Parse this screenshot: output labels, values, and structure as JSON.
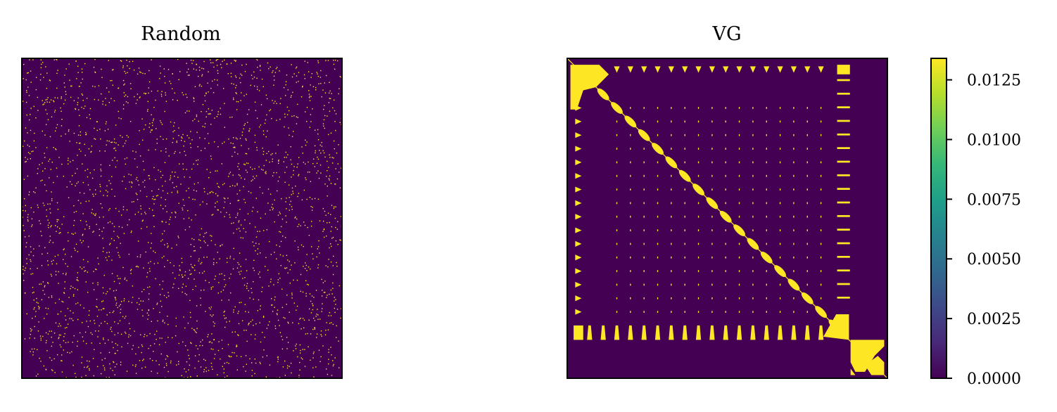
{
  "chart_data": [
    {
      "type": "heatmap",
      "title": "Random",
      "xlabel": "",
      "ylabel": "",
      "pattern": "random-sparse",
      "density": 0.1,
      "grid": false,
      "ticks": false,
      "cmap": "viridis"
    },
    {
      "type": "heatmap",
      "title": "VG",
      "xlabel": "",
      "ylabel": "",
      "pattern": "visibility-graph-block-structure",
      "grid": false,
      "ticks": false,
      "cmap": "viridis",
      "colorbar": {
        "range": [
          0.0,
          0.0134
        ],
        "ticks": [
          0.0,
          0.0025,
          0.005,
          0.0075,
          0.01,
          0.0125
        ],
        "tick_labels": [
          "0.0000",
          "0.0025",
          "0.0050",
          "0.0075",
          "0.0100",
          "0.0125"
        ],
        "placement": "right"
      }
    }
  ],
  "colors": {
    "low": "#440154",
    "high": "#fde725",
    "viridis_stops": [
      "#440154",
      "#482878",
      "#3e4989",
      "#31688e",
      "#26828e",
      "#1f9e89",
      "#35b779",
      "#6ece58",
      "#b5de2b",
      "#fde725"
    ]
  }
}
